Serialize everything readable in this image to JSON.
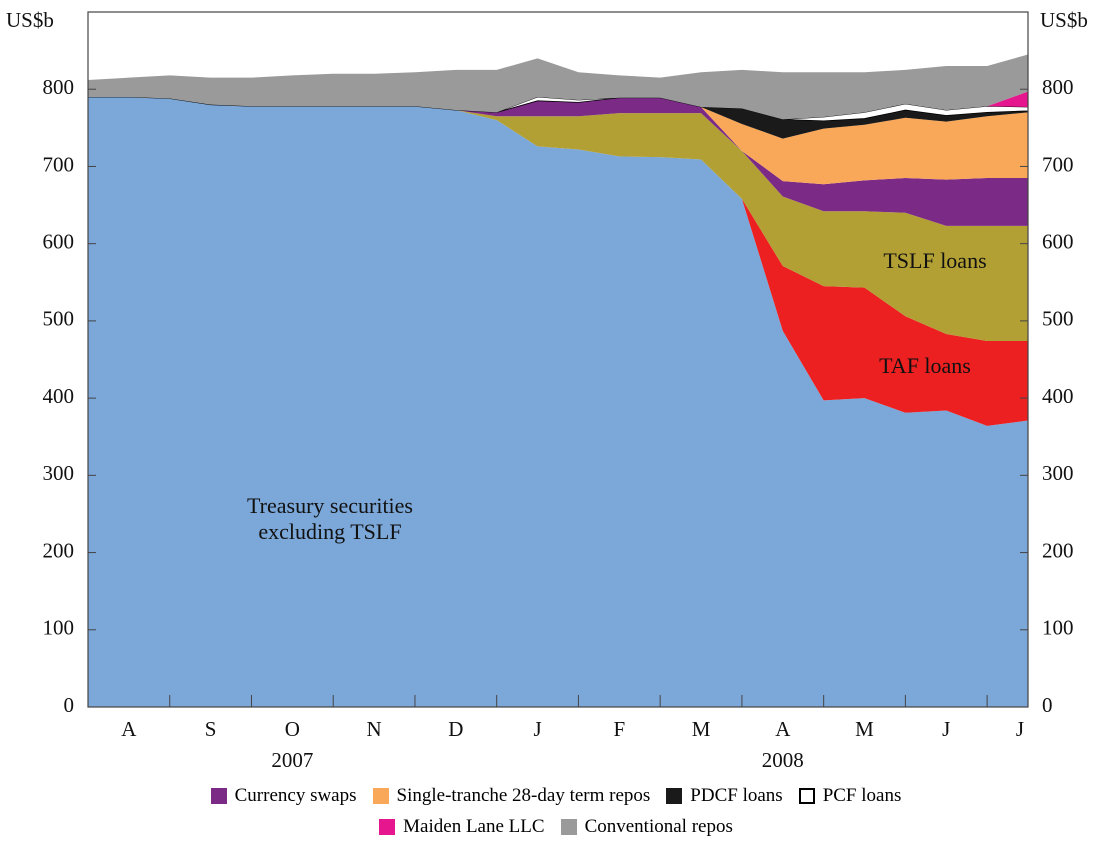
{
  "chart_data": {
    "type": "stacked-area",
    "y_unit": "US$b",
    "categories": [
      null,
      "A",
      null,
      "S",
      null,
      "O",
      null,
      "N",
      null,
      "D",
      null,
      "J",
      null,
      "F",
      null,
      "M",
      null,
      "A",
      null,
      "M",
      null,
      "J",
      null,
      "J"
    ],
    "years": [
      "2007",
      "2008"
    ],
    "ylim": [
      0,
      900
    ],
    "yticks": [
      0,
      100,
      200,
      300,
      400,
      500,
      600,
      700,
      800
    ],
    "grid": false,
    "series": [
      {
        "name": "Treasury securities excluding TSLF",
        "color": "#7ba7d9",
        "values": [
          790,
          790,
          788,
          780,
          778,
          778,
          778,
          778,
          778,
          773,
          760,
          726,
          722,
          713,
          712,
          709,
          658,
          487,
          397,
          400,
          381,
          384,
          364,
          371
        ]
      },
      {
        "name": "TSLF loans",
        "color": "#ec2020",
        "values": [
          0,
          0,
          0,
          0,
          0,
          0,
          0,
          0,
          0,
          0,
          0,
          0,
          0,
          0,
          0,
          0,
          0,
          84,
          148,
          143,
          125,
          99,
          110,
          103
        ]
      },
      {
        "name": "TAF loans",
        "color": "#b3a035",
        "values": [
          0,
          0,
          0,
          0,
          0,
          0,
          0,
          0,
          0,
          0,
          5,
          39,
          43,
          56,
          57,
          60,
          62,
          90,
          97,
          99,
          134,
          140,
          149,
          149
        ]
      },
      {
        "name": "Currency swaps",
        "color": "#7b2a86",
        "values": [
          0,
          0,
          0,
          0,
          0,
          0,
          0,
          0,
          0,
          0,
          5,
          20,
          18,
          20,
          20,
          8,
          0,
          20,
          35,
          40,
          45,
          60,
          62,
          62
        ]
      },
      {
        "name": "Single-tranche 28-day term repos",
        "color": "#f9a85a",
        "values": [
          0,
          0,
          0,
          0,
          0,
          0,
          0,
          0,
          0,
          0,
          0,
          0,
          0,
          0,
          0,
          0,
          35,
          55,
          72,
          72,
          78,
          75,
          80,
          85
        ]
      },
      {
        "name": "PDCF loans",
        "color": "#1a1a1a",
        "values": [
          0,
          0,
          0,
          0,
          0,
          0,
          0,
          0,
          0,
          0,
          0,
          0,
          0,
          0,
          0,
          0,
          20,
          25,
          10,
          8,
          10,
          8,
          5,
          2
        ]
      },
      {
        "name": "PCF loans",
        "color": "#ffffff",
        "values": [
          0,
          0,
          0,
          0,
          0,
          0,
          0,
          0,
          0,
          0,
          0,
          5,
          3,
          0,
          0,
          0,
          0,
          0,
          5,
          8,
          8,
          7,
          8,
          5
        ]
      },
      {
        "name": "Maiden Lane LLC",
        "color": "#e5168e",
        "values": [
          0,
          0,
          0,
          0,
          0,
          0,
          0,
          0,
          0,
          0,
          0,
          0,
          0,
          0,
          0,
          0,
          0,
          0,
          0,
          0,
          0,
          0,
          0,
          20
        ]
      },
      {
        "name": "Conventional repos",
        "color": "#9a9a9a",
        "values": [
          22,
          25,
          30,
          35,
          37,
          40,
          42,
          42,
          44,
          52,
          55,
          50,
          36,
          29,
          26,
          45,
          50,
          61,
          58,
          52,
          44,
          57,
          52,
          48
        ]
      }
    ]
  }
}
